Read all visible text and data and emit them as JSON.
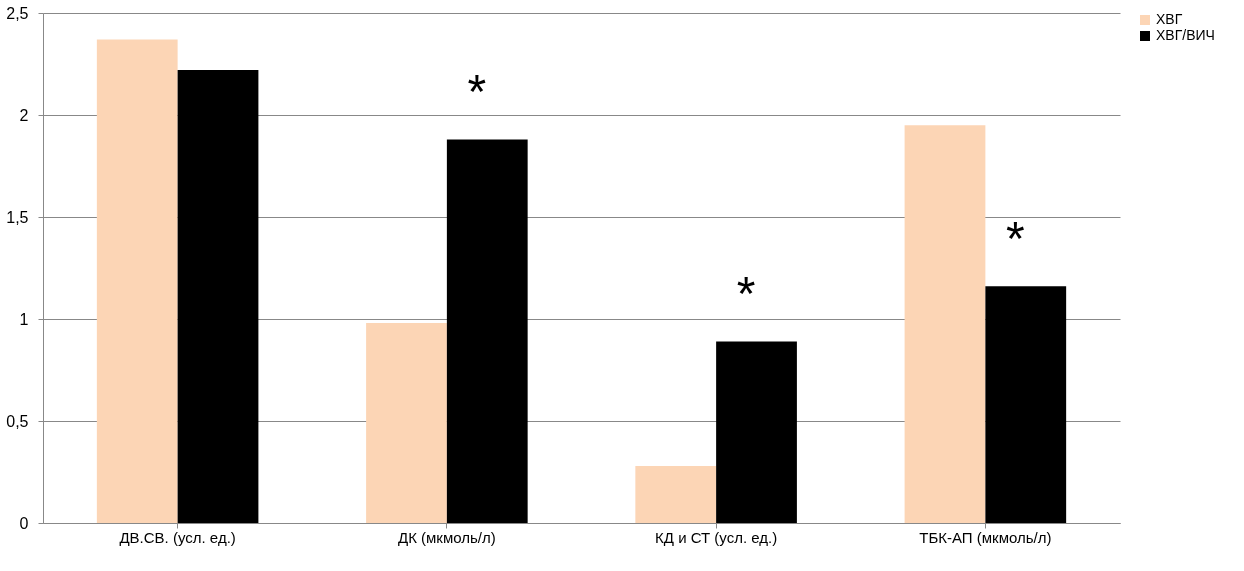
{
  "chart_data": {
    "type": "bar",
    "categories": [
      "ДВ.СВ. (усл. ед.)",
      "ДК (мкмоль/л)",
      "КД и СТ (усл. ед.)",
      "ТБК-АП (мкмоль/л)"
    ],
    "series": [
      {
        "name": "ХВГ",
        "color": "#fcd5b5",
        "values": [
          2.37,
          0.98,
          0.28,
          1.95
        ]
      },
      {
        "name": "ХВГ/ВИЧ",
        "color": "#000000",
        "values": [
          2.22,
          1.88,
          0.89,
          1.16
        ]
      }
    ],
    "ylim": [
      0,
      2.5
    ],
    "yticks": [
      0,
      {
        "value": 0.5,
        "label": "0,5"
      },
      1,
      {
        "value": 1.5,
        "label": "1,5"
      },
      2,
      {
        "value": 2.5,
        "label": "2,5"
      }
    ],
    "grid": "y",
    "legend": "right",
    "annotations": [
      {
        "text": "*",
        "x": "ДК (мкмоль/л)",
        "y": 1.88
      },
      {
        "text": "*",
        "x": "КД и СТ (усл. ед.)",
        "y": 0.89
      },
      {
        "text": "*",
        "x": "ТБК-АП (мкмоль/л)",
        "y": 1.16
      }
    ]
  }
}
